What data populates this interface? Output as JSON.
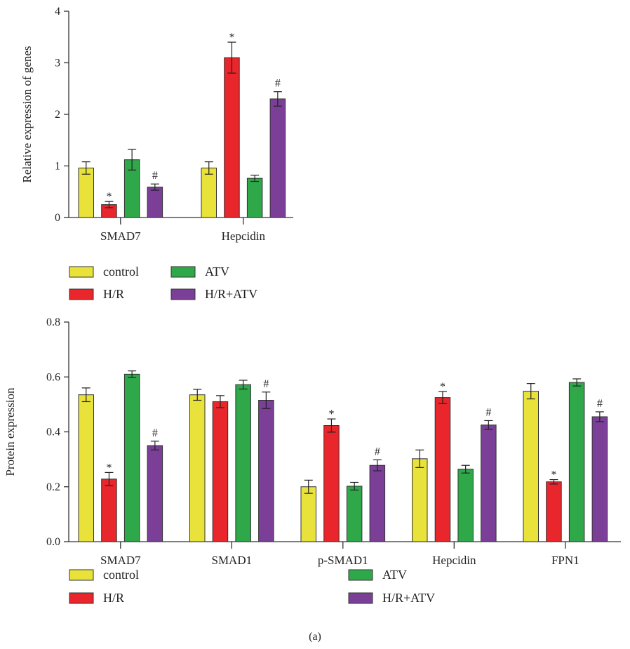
{
  "legend": {
    "items": [
      {
        "label": "control",
        "color": "#e8e23a"
      },
      {
        "label": "H/R",
        "color": "#e8262b"
      },
      {
        "label": "ATV",
        "color": "#2fa84a"
      },
      {
        "label": "H/R+ATV",
        "color": "#7b3f98"
      }
    ]
  },
  "caption": "(a)",
  "chart_data": [
    {
      "type": "bar",
      "ylabel": "Relative expression of genes",
      "ylim": [
        0,
        4
      ],
      "yticks": [
        0,
        1,
        2,
        3,
        4
      ],
      "categories": [
        "SMAD7",
        "Hepcidin"
      ],
      "series": [
        {
          "name": "control",
          "values": [
            0.96,
            0.96
          ],
          "errors": [
            0.12,
            0.12
          ],
          "marks": [
            "",
            ""
          ]
        },
        {
          "name": "H/R",
          "values": [
            0.25,
            3.1
          ],
          "errors": [
            0.06,
            0.3
          ],
          "marks": [
            "*",
            "*"
          ]
        },
        {
          "name": "ATV",
          "values": [
            1.12,
            0.76
          ],
          "errors": [
            0.2,
            0.06
          ],
          "marks": [
            "",
            ""
          ]
        },
        {
          "name": "H/R+ATV",
          "values": [
            0.59,
            2.3
          ],
          "errors": [
            0.06,
            0.14
          ],
          "marks": [
            "#",
            "#"
          ]
        }
      ]
    },
    {
      "type": "bar",
      "ylabel": "Protein expression",
      "ylim": [
        0,
        0.8
      ],
      "yticks": [
        "0.0",
        "0.2",
        "0.4",
        "0.6",
        "0.8"
      ],
      "categories": [
        "SMAD7",
        "SMAD1",
        "p-SMAD1",
        "Hepcidin",
        "FPN1"
      ],
      "series": [
        {
          "name": "control",
          "values": [
            0.535,
            0.535,
            0.2,
            0.302,
            0.548
          ],
          "errors": [
            0.025,
            0.02,
            0.024,
            0.032,
            0.028
          ],
          "marks": [
            "",
            "",
            "",
            "",
            ""
          ]
        },
        {
          "name": "H/R",
          "values": [
            0.228,
            0.51,
            0.423,
            0.525,
            0.218
          ],
          "errors": [
            0.024,
            0.022,
            0.024,
            0.022,
            0.008
          ],
          "marks": [
            "*",
            "",
            "*",
            "*",
            "*"
          ]
        },
        {
          "name": "ATV",
          "values": [
            0.61,
            0.572,
            0.202,
            0.264,
            0.58
          ],
          "errors": [
            0.012,
            0.016,
            0.014,
            0.014,
            0.013
          ],
          "marks": [
            "",
            "",
            "",
            "",
            ""
          ]
        },
        {
          "name": "H/R+ATV",
          "values": [
            0.35,
            0.515,
            0.278,
            0.425,
            0.455
          ],
          "errors": [
            0.016,
            0.03,
            0.02,
            0.016,
            0.018
          ],
          "marks": [
            "#",
            "#",
            "#",
            "#",
            "#"
          ]
        }
      ]
    }
  ]
}
